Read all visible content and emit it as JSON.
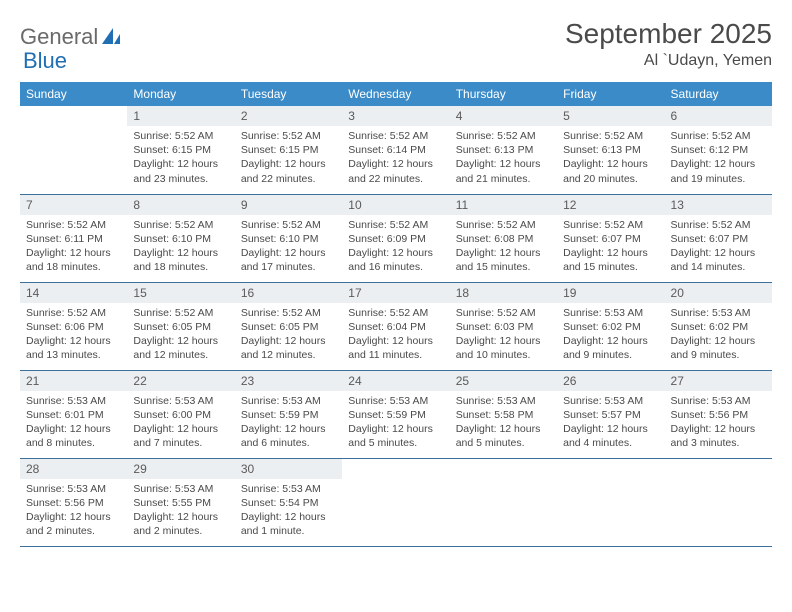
{
  "logo": {
    "textA": "General",
    "textB": "Blue"
  },
  "title": "September 2025",
  "location": "Al `Udayn, Yemen",
  "colors": {
    "header_bg": "#3b8bc8",
    "header_text": "#ffffff",
    "border": "#3b6f9c",
    "daynum_bg": "#eceff1",
    "body_text": "#4a4a4a",
    "logo_gray": "#6a6a6a",
    "logo_blue": "#1f6fb2"
  },
  "weekdays": [
    "Sunday",
    "Monday",
    "Tuesday",
    "Wednesday",
    "Thursday",
    "Friday",
    "Saturday"
  ],
  "first_weekday_index": 1,
  "days": [
    {
      "n": 1,
      "sr": "5:52 AM",
      "ss": "6:15 PM",
      "dl": "12 hours and 23 minutes."
    },
    {
      "n": 2,
      "sr": "5:52 AM",
      "ss": "6:15 PM",
      "dl": "12 hours and 22 minutes."
    },
    {
      "n": 3,
      "sr": "5:52 AM",
      "ss": "6:14 PM",
      "dl": "12 hours and 22 minutes."
    },
    {
      "n": 4,
      "sr": "5:52 AM",
      "ss": "6:13 PM",
      "dl": "12 hours and 21 minutes."
    },
    {
      "n": 5,
      "sr": "5:52 AM",
      "ss": "6:13 PM",
      "dl": "12 hours and 20 minutes."
    },
    {
      "n": 6,
      "sr": "5:52 AM",
      "ss": "6:12 PM",
      "dl": "12 hours and 19 minutes."
    },
    {
      "n": 7,
      "sr": "5:52 AM",
      "ss": "6:11 PM",
      "dl": "12 hours and 18 minutes."
    },
    {
      "n": 8,
      "sr": "5:52 AM",
      "ss": "6:10 PM",
      "dl": "12 hours and 18 minutes."
    },
    {
      "n": 9,
      "sr": "5:52 AM",
      "ss": "6:10 PM",
      "dl": "12 hours and 17 minutes."
    },
    {
      "n": 10,
      "sr": "5:52 AM",
      "ss": "6:09 PM",
      "dl": "12 hours and 16 minutes."
    },
    {
      "n": 11,
      "sr": "5:52 AM",
      "ss": "6:08 PM",
      "dl": "12 hours and 15 minutes."
    },
    {
      "n": 12,
      "sr": "5:52 AM",
      "ss": "6:07 PM",
      "dl": "12 hours and 15 minutes."
    },
    {
      "n": 13,
      "sr": "5:52 AM",
      "ss": "6:07 PM",
      "dl": "12 hours and 14 minutes."
    },
    {
      "n": 14,
      "sr": "5:52 AM",
      "ss": "6:06 PM",
      "dl": "12 hours and 13 minutes."
    },
    {
      "n": 15,
      "sr": "5:52 AM",
      "ss": "6:05 PM",
      "dl": "12 hours and 12 minutes."
    },
    {
      "n": 16,
      "sr": "5:52 AM",
      "ss": "6:05 PM",
      "dl": "12 hours and 12 minutes."
    },
    {
      "n": 17,
      "sr": "5:52 AM",
      "ss": "6:04 PM",
      "dl": "12 hours and 11 minutes."
    },
    {
      "n": 18,
      "sr": "5:52 AM",
      "ss": "6:03 PM",
      "dl": "12 hours and 10 minutes."
    },
    {
      "n": 19,
      "sr": "5:53 AM",
      "ss": "6:02 PM",
      "dl": "12 hours and 9 minutes."
    },
    {
      "n": 20,
      "sr": "5:53 AM",
      "ss": "6:02 PM",
      "dl": "12 hours and 9 minutes."
    },
    {
      "n": 21,
      "sr": "5:53 AM",
      "ss": "6:01 PM",
      "dl": "12 hours and 8 minutes."
    },
    {
      "n": 22,
      "sr": "5:53 AM",
      "ss": "6:00 PM",
      "dl": "12 hours and 7 minutes."
    },
    {
      "n": 23,
      "sr": "5:53 AM",
      "ss": "5:59 PM",
      "dl": "12 hours and 6 minutes."
    },
    {
      "n": 24,
      "sr": "5:53 AM",
      "ss": "5:59 PM",
      "dl": "12 hours and 5 minutes."
    },
    {
      "n": 25,
      "sr": "5:53 AM",
      "ss": "5:58 PM",
      "dl": "12 hours and 5 minutes."
    },
    {
      "n": 26,
      "sr": "5:53 AM",
      "ss": "5:57 PM",
      "dl": "12 hours and 4 minutes."
    },
    {
      "n": 27,
      "sr": "5:53 AM",
      "ss": "5:56 PM",
      "dl": "12 hours and 3 minutes."
    },
    {
      "n": 28,
      "sr": "5:53 AM",
      "ss": "5:56 PM",
      "dl": "12 hours and 2 minutes."
    },
    {
      "n": 29,
      "sr": "5:53 AM",
      "ss": "5:55 PM",
      "dl": "12 hours and 2 minutes."
    },
    {
      "n": 30,
      "sr": "5:53 AM",
      "ss": "5:54 PM",
      "dl": "12 hours and 1 minute."
    }
  ],
  "labels": {
    "sunrise": "Sunrise:",
    "sunset": "Sunset:",
    "daylight": "Daylight:"
  }
}
